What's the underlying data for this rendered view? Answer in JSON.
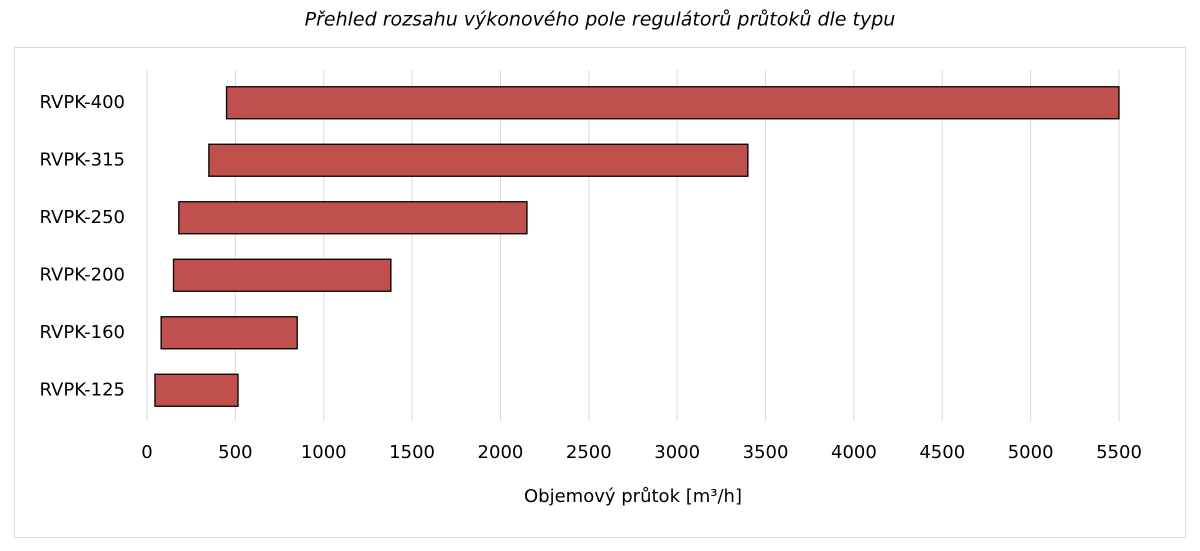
{
  "chart_data": {
    "type": "range_bar",
    "orientation": "horizontal",
    "title": "Přehled rozsahu výkonového pole regulátorů průtoků dle typu",
    "x_label": "Objemový průtok [m³/h]",
    "categories": [
      "RVPK-400",
      "RVPK-315",
      "RVPK-250",
      "RVPK-200",
      "RVPK-160",
      "RVPK-125"
    ],
    "low": [
      450,
      350,
      180,
      150,
      80,
      45
    ],
    "high": [
      5500,
      3400,
      2150,
      1380,
      850,
      515
    ],
    "color": "#c0504d",
    "xlim": [
      0,
      5500
    ],
    "xticks": [
      0,
      500,
      1000,
      1500,
      2000,
      2500,
      3000,
      3500,
      4000,
      4500,
      5000,
      5500
    ],
    "grid": true
  }
}
